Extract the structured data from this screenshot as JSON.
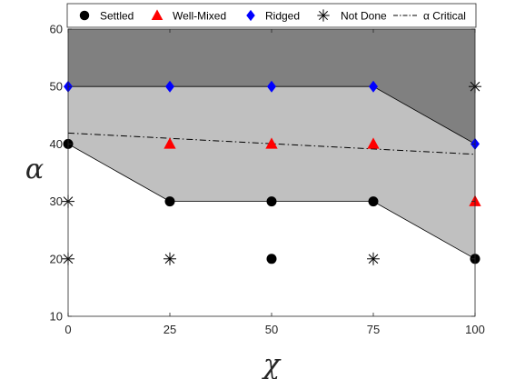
{
  "chart_data": {
    "type": "scatter",
    "title": "",
    "xlabel": "χ",
    "ylabel": "α",
    "xlim": [
      0,
      100
    ],
    "ylim": [
      10,
      60
    ],
    "xticks": [
      0,
      25,
      50,
      75,
      100
    ],
    "yticks": [
      10,
      20,
      30,
      40,
      50,
      60
    ],
    "grid": false,
    "legend_position": "top",
    "regions": [
      {
        "label": "Ridged region",
        "color": "#808080",
        "points": [
          [
            0,
            60
          ],
          [
            100,
            60
          ],
          [
            100,
            40
          ],
          [
            75,
            50
          ],
          [
            0,
            50
          ]
        ]
      },
      {
        "label": "Well-mixed region",
        "color": "#c0c0c0",
        "points": [
          [
            0,
            50
          ],
          [
            75,
            50
          ],
          [
            100,
            40
          ],
          [
            100,
            20
          ],
          [
            75,
            30
          ],
          [
            25,
            30
          ],
          [
            0,
            40
          ]
        ]
      }
    ],
    "series": [
      {
        "name": "Settled",
        "marker": "circle",
        "color": "#000000",
        "points": [
          [
            0,
            40
          ],
          [
            25,
            30
          ],
          [
            50,
            30
          ],
          [
            75,
            30
          ],
          [
            50,
            20
          ],
          [
            100,
            20
          ]
        ]
      },
      {
        "name": "Well-Mixed",
        "marker": "triangle",
        "color": "#ff0000",
        "points": [
          [
            25,
            40
          ],
          [
            50,
            40
          ],
          [
            75,
            40
          ],
          [
            100,
            30
          ]
        ]
      },
      {
        "name": "Ridged",
        "marker": "diamond",
        "color": "#0000ff",
        "points": [
          [
            0,
            50
          ],
          [
            25,
            50
          ],
          [
            50,
            50
          ],
          [
            75,
            50
          ],
          [
            100,
            40
          ]
        ]
      },
      {
        "name": "Not Done",
        "marker": "asterisk",
        "color": "#000000",
        "points": [
          [
            0,
            30
          ],
          [
            0,
            20
          ],
          [
            25,
            20
          ],
          [
            75,
            20
          ],
          [
            100,
            50
          ]
        ]
      },
      {
        "name": "α Critical",
        "marker": "none",
        "line": "dashdot",
        "color": "#000000",
        "points": [
          [
            0,
            41.9
          ],
          [
            100,
            38.2
          ]
        ]
      }
    ]
  }
}
